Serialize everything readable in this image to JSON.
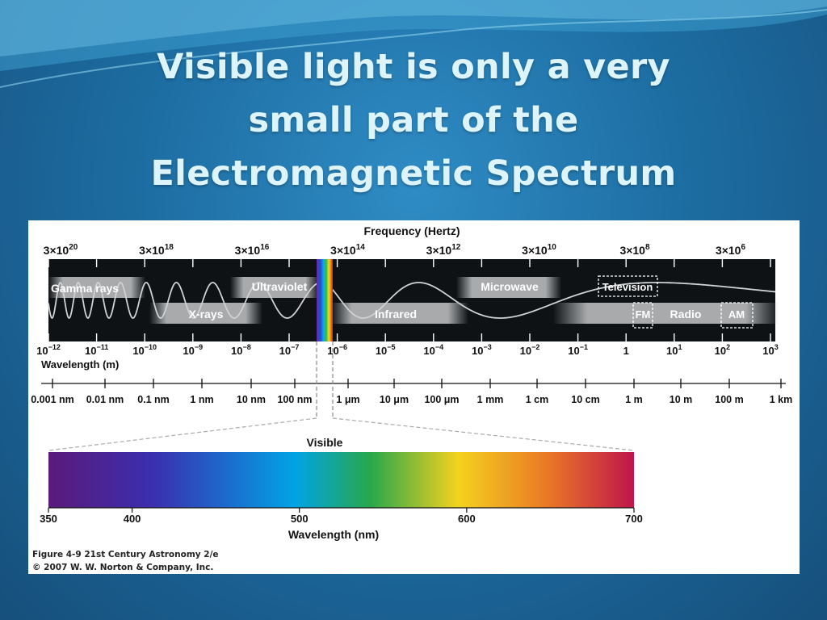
{
  "slide": {
    "title_lines": [
      "Visible light is only a very",
      "small part of the",
      "Electromagnetic Spectrum"
    ],
    "colors": {
      "background": "#1d6ea3",
      "title": "#ddf4fb",
      "band_dark": "#0e1214",
      "band_light": "#9c9fa1"
    }
  },
  "figure": {
    "frequency_title": "Frequency (Hertz)",
    "frequency_ticks": [
      {
        "base": "3×10",
        "exp": "20"
      },
      {
        "base": "3×10",
        "exp": "18"
      },
      {
        "base": "3×10",
        "exp": "16"
      },
      {
        "base": "3×10",
        "exp": "14"
      },
      {
        "base": "3×10",
        "exp": "12"
      },
      {
        "base": "3×10",
        "exp": "10"
      },
      {
        "base": "3×10",
        "exp": "8"
      },
      {
        "base": "3×10",
        "exp": "6"
      }
    ],
    "bands": {
      "gamma": "Gamma rays",
      "xrays": "X-rays",
      "ultraviolet": "Ultraviolet",
      "infrared": "Infrared",
      "microwave": "Microwave",
      "television": "Television",
      "fm": "FM",
      "radio": "Radio",
      "am": "AM"
    },
    "wavelength_m_ticks": [
      {
        "base": "10",
        "exp": "−12"
      },
      {
        "base": "10",
        "exp": "−11"
      },
      {
        "base": "10",
        "exp": "−10"
      },
      {
        "base": "10",
        "exp": "−9"
      },
      {
        "base": "10",
        "exp": "−8"
      },
      {
        "base": "10",
        "exp": "−7"
      },
      {
        "base": "10",
        "exp": "−6"
      },
      {
        "base": "10",
        "exp": "−5"
      },
      {
        "base": "10",
        "exp": "−4"
      },
      {
        "base": "10",
        "exp": "−3"
      },
      {
        "base": "10",
        "exp": "−2"
      },
      {
        "base": "10",
        "exp": "−1"
      },
      {
        "base": "1",
        "exp": ""
      },
      {
        "base": "10",
        "exp": "1"
      },
      {
        "base": "10",
        "exp": "2"
      },
      {
        "base": "10",
        "exp": "3"
      }
    ],
    "wavelength_m_label": "Wavelength (m)",
    "unit_scale": [
      "0.001 nm",
      "0.01 nm",
      "0.1 nm",
      "1 nm",
      "10 nm",
      "100 nm",
      "1 μm",
      "10 μm",
      "100 μm",
      "1 mm",
      "1 cm",
      "10 cm",
      "1 m",
      "10 m",
      "100 m",
      "1 km"
    ],
    "visible_title": "Visible",
    "visible_ticks": [
      {
        "value": 350,
        "label": "350"
      },
      {
        "value": 400,
        "label": "400"
      },
      {
        "value": 500,
        "label": "500"
      },
      {
        "value": 600,
        "label": "600"
      },
      {
        "value": 700,
        "label": "700"
      }
    ],
    "visible_range_nm": [
      350,
      700
    ],
    "visible_axis_label": "Wavelength (nm)",
    "caption_lines": [
      "Figure 4-9  21st Century Astronomy 2/e",
      "© 2007 W. W. Norton & Company, Inc."
    ]
  }
}
